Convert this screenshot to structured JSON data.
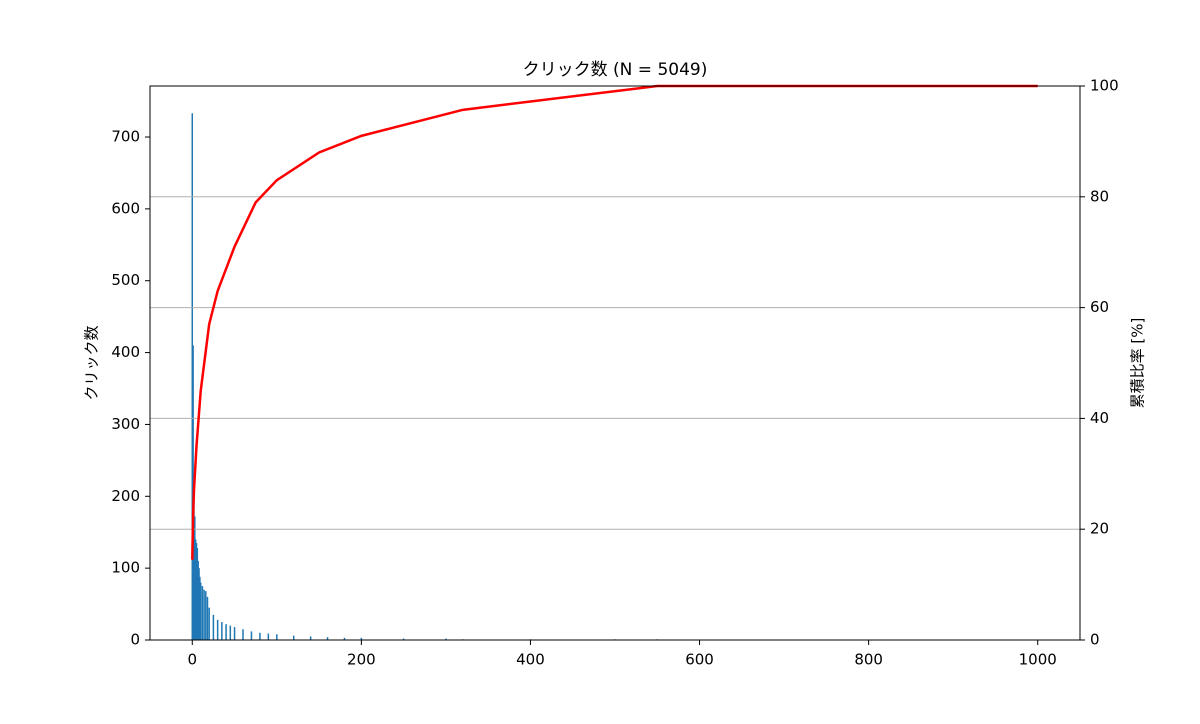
{
  "chart_data": {
    "type": "bar",
    "title": "クリック数 (N = 5049)",
    "y_label": "クリック数",
    "y2_label": "累積比率 [%]",
    "xlim": [
      -50,
      1050
    ],
    "xticks": [
      0,
      200,
      400,
      600,
      800,
      1000
    ],
    "ylim": [
      0,
      771
    ],
    "yticks": [
      0,
      100,
      200,
      300,
      400,
      500,
      600,
      700
    ],
    "y2lim": [
      0,
      100
    ],
    "y2ticks": [
      0,
      20,
      40,
      60,
      80,
      100
    ],
    "grid": "y2",
    "series": [
      {
        "type": "bar",
        "color": "#1f77b4",
        "x": [
          0,
          1,
          2,
          3,
          4,
          5,
          6,
          7,
          8,
          9,
          10,
          12,
          14,
          16,
          18,
          20,
          25,
          30,
          35,
          40,
          45,
          50,
          60,
          70,
          80,
          90,
          100,
          120,
          140,
          160,
          180,
          200,
          250,
          300,
          320,
          400,
          500,
          550
        ],
        "values": [
          733,
          410,
          230,
          172,
          140,
          135,
          128,
          110,
          100,
          88,
          80,
          75,
          70,
          68,
          60,
          45,
          35,
          28,
          25,
          22,
          20,
          18,
          15,
          12,
          10,
          9,
          8,
          6,
          5,
          4,
          3,
          3,
          2,
          2,
          1,
          1,
          1,
          1
        ]
      },
      {
        "type": "line",
        "color": "#ff0000",
        "axis": "y2",
        "x": [
          0,
          1,
          2,
          5,
          10,
          20,
          30,
          50,
          75,
          100,
          150,
          200,
          320,
          550,
          1000
        ],
        "values": [
          14.5,
          22.6,
          27,
          35,
          45,
          57,
          63,
          71,
          79,
          83,
          88,
          91,
          95.7,
          100,
          100
        ]
      }
    ]
  }
}
